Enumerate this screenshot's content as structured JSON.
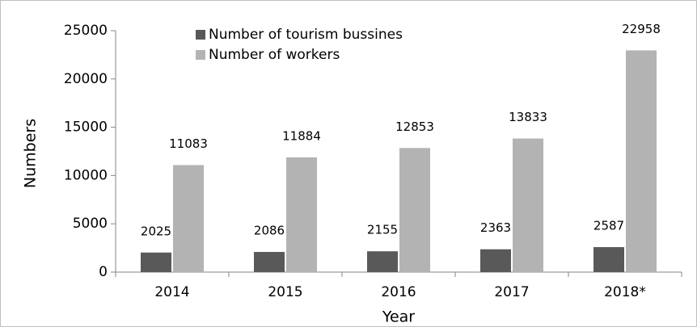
{
  "chart_data": {
    "type": "bar",
    "categories": [
      "2014",
      "2015",
      "2016",
      "2017",
      "2018*"
    ],
    "series": [
      {
        "name": "Number of tourism bussines",
        "color": "#595959",
        "values": [
          2025,
          2086,
          2155,
          2363,
          2587
        ]
      },
      {
        "name": "Number of workers",
        "color": "#b3b3b3",
        "values": [
          11083,
          11884,
          12853,
          13833,
          22958
        ]
      }
    ],
    "ylim": [
      0,
      25000
    ],
    "yticks": [
      0,
      5000,
      10000,
      15000,
      20000,
      25000
    ],
    "xlabel": "Year",
    "ylabel": "Numbers",
    "grid": false,
    "legend": "top"
  }
}
